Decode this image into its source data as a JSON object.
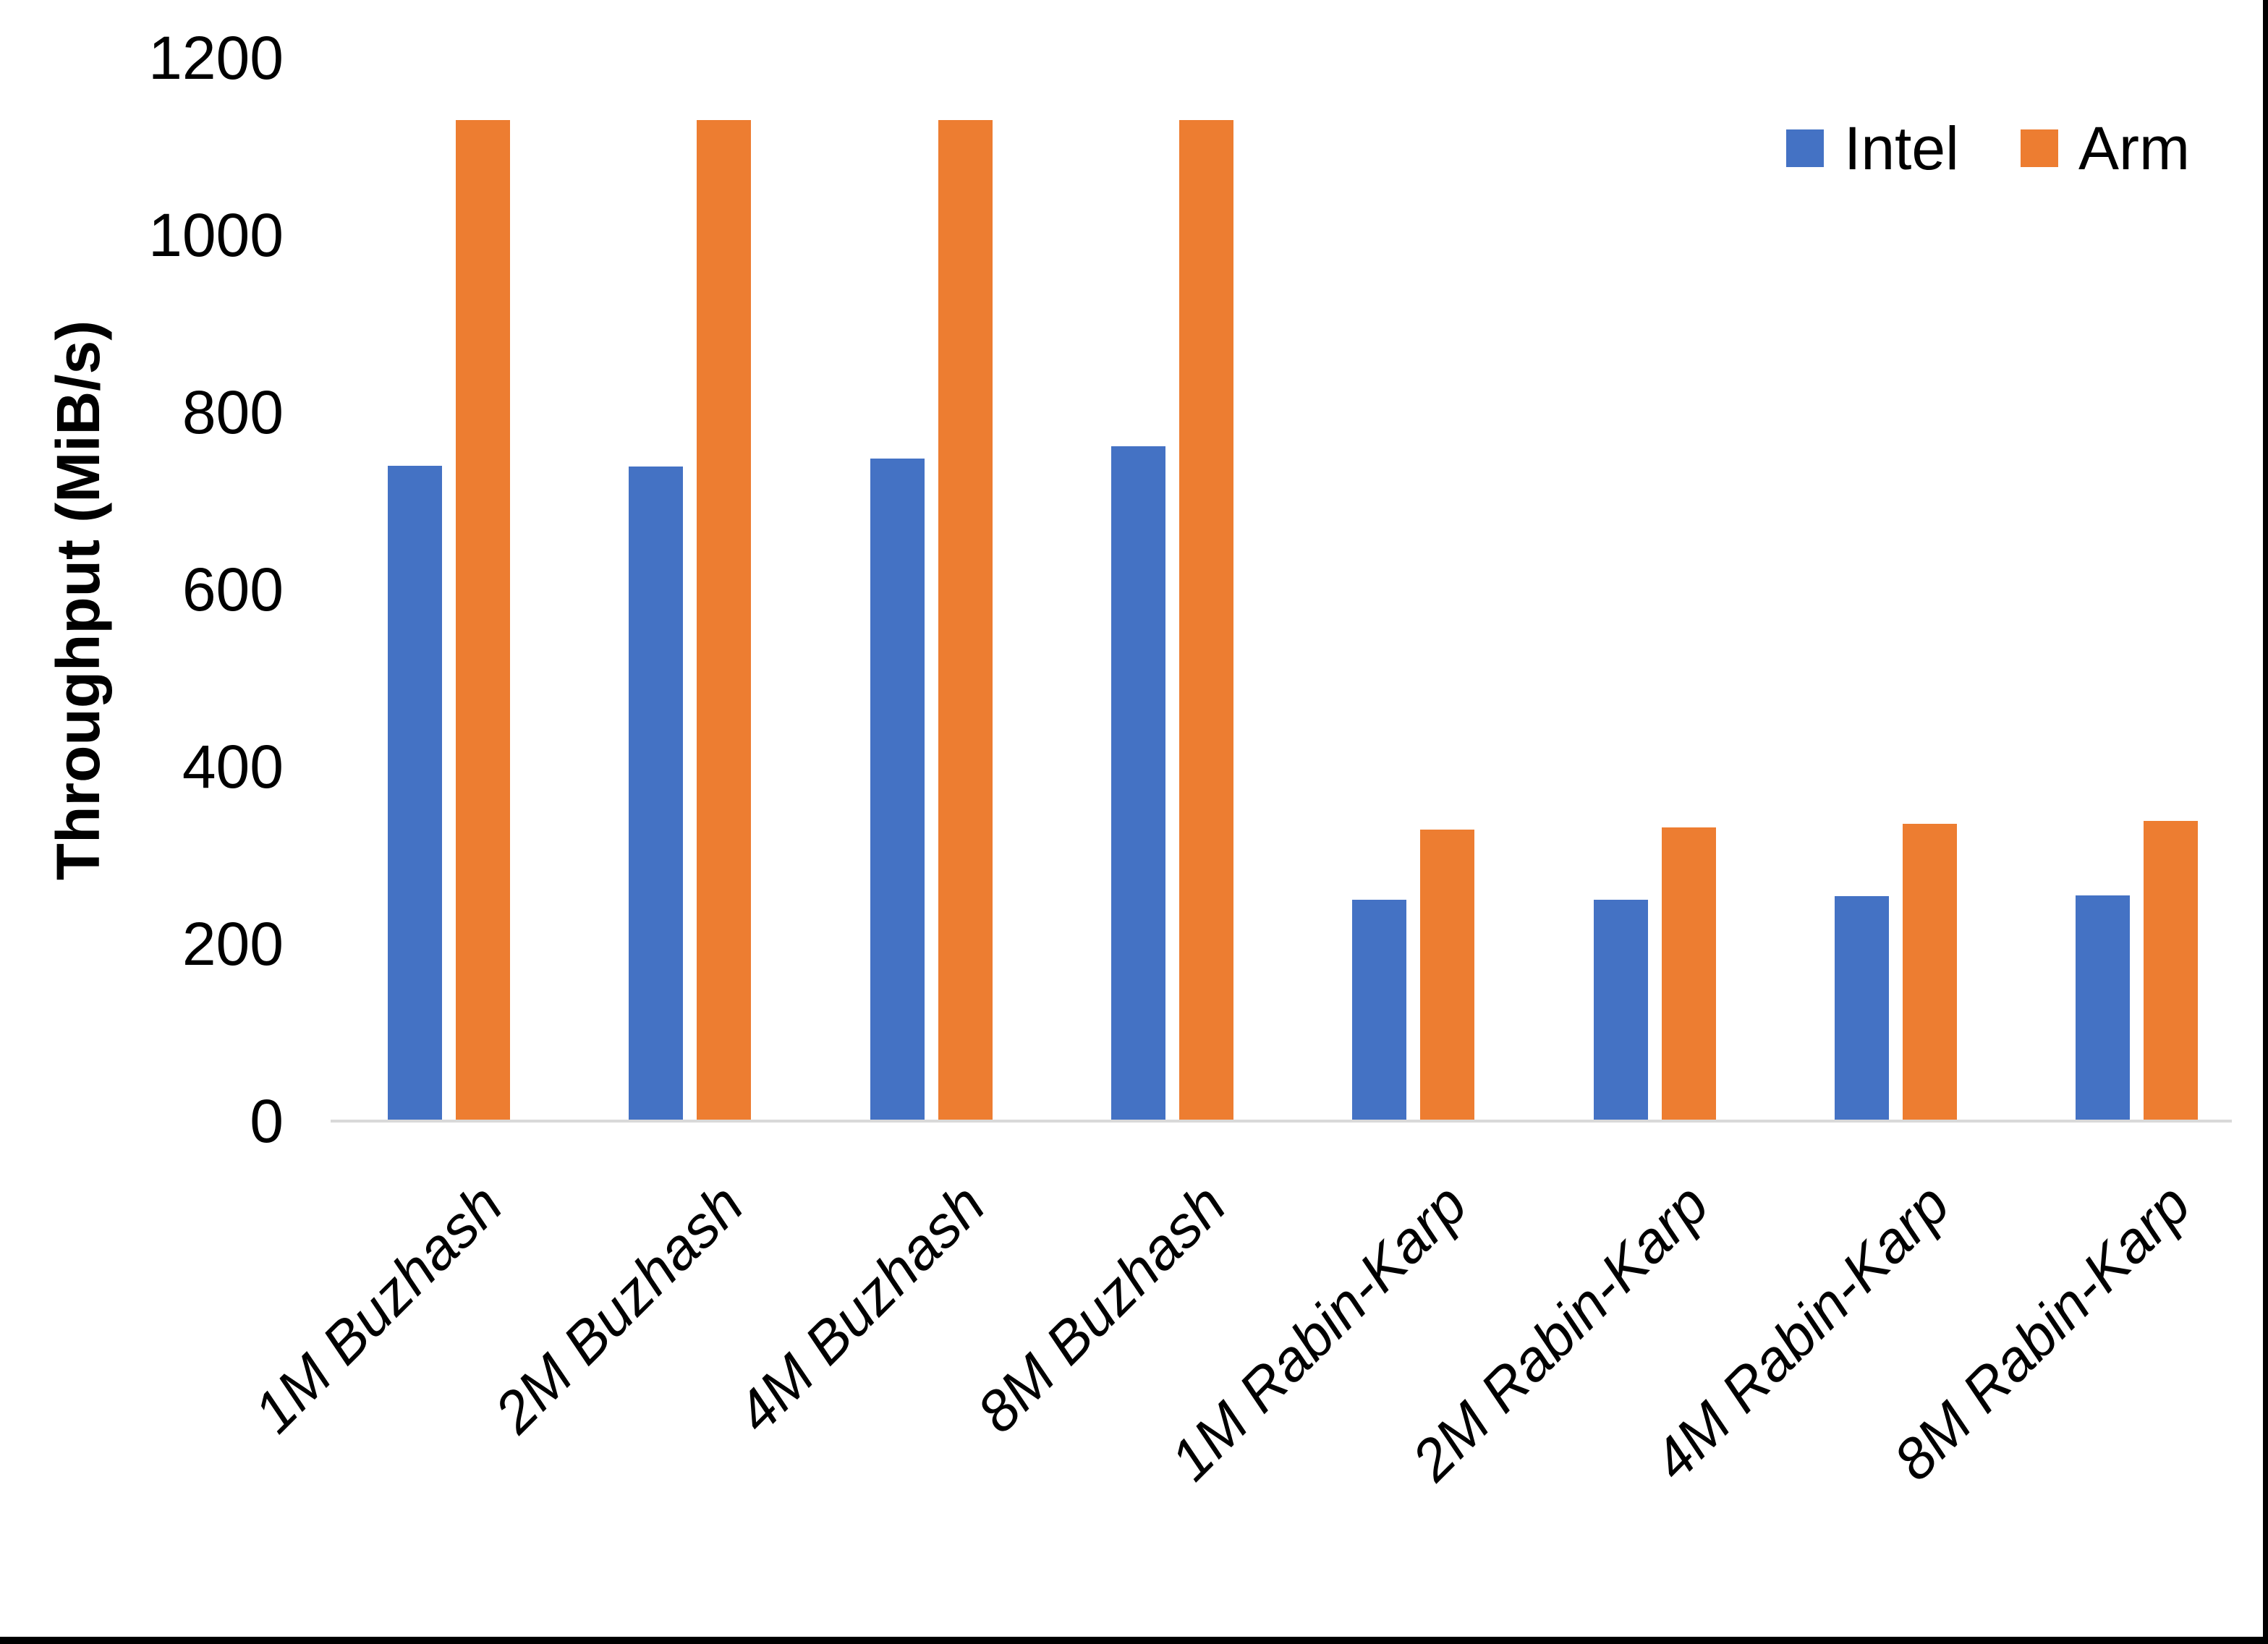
{
  "chart_data": {
    "type": "bar",
    "title": "",
    "xlabel": "",
    "ylabel": "Throughput (MiB/s)",
    "ylim": [
      0,
      1200
    ],
    "yticks": [
      0,
      200,
      400,
      600,
      800,
      1000,
      1200
    ],
    "grid": false,
    "legend_position": "top-right",
    "categories": [
      "1M Buzhash",
      "2M Buzhash",
      "4M Buzhash",
      "8M Buzhash",
      "1M Rabin-Karp",
      "2M Rabin-Karp",
      "4M Rabin-Karp",
      "8M Rabin-Karp"
    ],
    "series": [
      {
        "name": "Intel",
        "color": "#4472C4",
        "values": [
          738,
          737,
          746,
          760,
          248,
          248,
          252,
          253
        ]
      },
      {
        "name": "Arm",
        "color": "#ED7D31",
        "values": [
          1128,
          1128,
          1128,
          1128,
          327,
          330,
          334,
          337
        ]
      }
    ],
    "axis_line_color": "#D9D9D9",
    "text_color": "#000000"
  }
}
